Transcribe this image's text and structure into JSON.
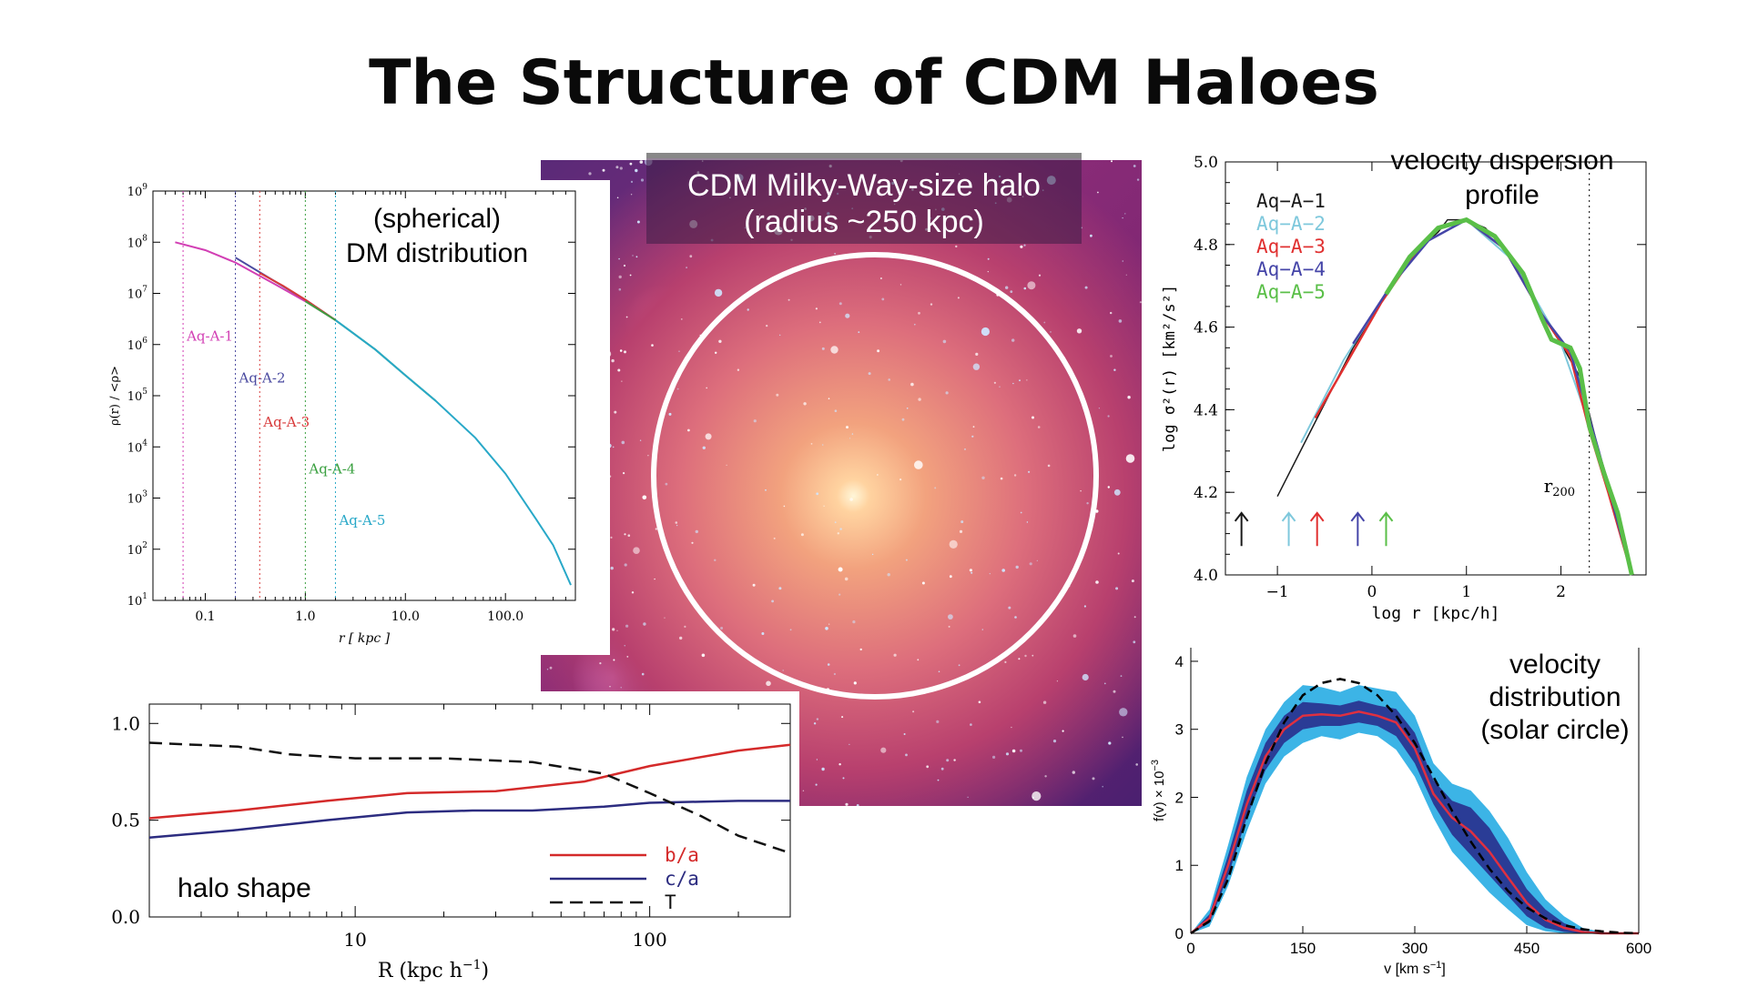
{
  "page": {
    "title": "The Structure of CDM Haloes"
  },
  "halo_image": {
    "caption_line1": "CDM Milky-Way-size halo",
    "caption_line2": "(radius ~250 kpc)"
  },
  "chart_data": [
    {
      "id": "density",
      "type": "line",
      "title_line1": "(spherical)",
      "title_line2": "DM distribution",
      "xlabel": "r [ kpc ]",
      "ylabel": "ρ(r) / <ρ>",
      "xscale": "log",
      "yscale": "log",
      "xlim": [
        0.03,
        500
      ],
      "ylim": [
        10,
        1000000000
      ],
      "xticks": [
        "0.1",
        "1.0",
        "10.0",
        "100.0"
      ],
      "xtick_values": [
        0.1,
        1,
        10,
        100
      ],
      "ytick_values": [
        10,
        100,
        1000,
        10000,
        100000,
        1000000,
        10000000,
        100000000,
        1000000000
      ],
      "yticks": [
        "1",
        "2",
        "3",
        "4",
        "5",
        "6",
        "7",
        "8",
        "9"
      ],
      "ytick_base": "10",
      "series": [
        {
          "name": "Aq-A-1",
          "color": "#d23fb4",
          "x": [
            0.05,
            0.1,
            0.2,
            0.5,
            1,
            2
          ],
          "y": [
            100000000,
            70000000,
            40000000,
            15000000,
            7000000,
            3000000
          ]
        },
        {
          "name": "Aq-A-2",
          "color": "#4a4aa0",
          "x": [
            0.2,
            0.5,
            1,
            2
          ],
          "y": [
            50000000,
            17000000,
            7500000,
            3000000
          ]
        },
        {
          "name": "Aq-A-3",
          "color": "#d83a3a",
          "x": [
            0.35,
            0.6,
            1,
            2
          ],
          "y": [
            25000000,
            14000000,
            7500000,
            3000000
          ]
        },
        {
          "name": "Aq-A-4",
          "color": "#3aa040",
          "x": [
            1,
            2,
            5,
            10,
            20
          ],
          "y": [
            7000000,
            3000000,
            800000,
            250000,
            80000
          ]
        },
        {
          "name": "Aq-A-5",
          "color": "#28a8c8",
          "x": [
            2,
            5,
            10,
            20,
            50,
            100,
            200,
            300,
            450
          ],
          "y": [
            3000000,
            800000,
            250000,
            80000,
            15000,
            3000,
            400,
            120,
            20
          ]
        }
      ],
      "convergence_radii": [
        0.06,
        0.2,
        0.35,
        1.0,
        2.0
      ],
      "label_y": [
        1200000,
        180000,
        25000,
        3000,
        300
      ]
    },
    {
      "id": "velocity-dispersion",
      "type": "line",
      "title_line1": "velocity dispersion",
      "title_line2": "profile",
      "xlabel": "log r [kpc/h]",
      "ylabel": "log σ²(r) [km²/s²]",
      "xlim": [
        -1.55,
        2.9
      ],
      "ylim": [
        4.0,
        5.0
      ],
      "xticks": [
        "−1",
        "0",
        "1",
        "2"
      ],
      "xtick_values": [
        -1,
        0,
        1,
        2
      ],
      "yticks": [
        "4.0",
        "4.2",
        "4.4",
        "4.6",
        "4.8",
        "5.0"
      ],
      "ytick_values": [
        4.0,
        4.2,
        4.4,
        4.6,
        4.8,
        5.0
      ],
      "series": [
        {
          "name": "Aq−A−1",
          "color": "#1a1a1a",
          "x": [
            -1,
            -0.6,
            -0.2,
            0.2,
            0.5,
            0.7,
            0.8,
            1.0,
            1.2,
            1.4,
            1.6,
            1.8,
            2.0,
            2.2,
            2.4,
            2.6,
            2.75
          ],
          "y": [
            4.19,
            4.37,
            4.55,
            4.7,
            4.79,
            4.83,
            4.86,
            4.86,
            4.84,
            4.79,
            4.72,
            4.63,
            4.56,
            4.48,
            4.3,
            4.15,
            4.0
          ]
        },
        {
          "name": "Aq−A−2",
          "color": "#7ec8dc",
          "x": [
            -0.75,
            -0.3,
            0.2,
            0.6,
            1.0,
            1.5,
            2.0,
            2.4,
            2.75
          ],
          "y": [
            4.32,
            4.52,
            4.7,
            4.81,
            4.86,
            4.76,
            4.56,
            4.3,
            4.0
          ]
        },
        {
          "name": "Aq−A−3",
          "color": "#e03030",
          "x": [
            -0.6,
            -0.3,
            0.1,
            0.4,
            0.7,
            1.0,
            1.4,
            1.8,
            2.1,
            2.3,
            2.5,
            2.75
          ],
          "y": [
            4.38,
            4.5,
            4.66,
            4.76,
            4.84,
            4.86,
            4.79,
            4.63,
            4.53,
            4.35,
            4.2,
            4.0
          ]
        },
        {
          "name": "Aq−A−4",
          "color": "#4545a8",
          "x": [
            -0.2,
            0.2,
            0.6,
            1.0,
            1.4,
            1.8,
            2.1,
            2.4,
            2.75
          ],
          "y": [
            4.56,
            4.7,
            4.81,
            4.86,
            4.79,
            4.63,
            4.54,
            4.3,
            4.0
          ]
        },
        {
          "name": "Aq−A−5",
          "color": "#5abf48",
          "x": [
            0.15,
            0.4,
            0.7,
            1.0,
            1.3,
            1.6,
            1.8,
            1.9,
            2.0,
            2.1,
            2.2,
            2.3,
            2.45,
            2.6,
            2.75
          ],
          "y": [
            4.68,
            4.77,
            4.84,
            4.86,
            4.82,
            4.73,
            4.62,
            4.57,
            4.56,
            4.55,
            4.5,
            4.36,
            4.25,
            4.15,
            4.0
          ]
        }
      ],
      "arrows": [
        {
          "x": -1.38,
          "color": "#1a1a1a"
        },
        {
          "x": -0.88,
          "color": "#7ec8dc"
        },
        {
          "x": -0.58,
          "color": "#e03030"
        },
        {
          "x": -0.15,
          "color": "#4545a8"
        },
        {
          "x": 0.15,
          "color": "#5abf48"
        }
      ],
      "r200_label": "r",
      "r200_sub": "200",
      "r200_x": 2.3
    },
    {
      "id": "halo-shape",
      "type": "line",
      "title": "halo shape",
      "xlabel": "R (kpc h",
      "xlabel_sup": "−1",
      "xlabel_end": ")",
      "xscale": "log",
      "xlim": [
        2,
        300
      ],
      "ylim": [
        0,
        1.1
      ],
      "xticks": [
        "10",
        "100"
      ],
      "xtick_values": [
        10,
        100
      ],
      "yticks": [
        "0.0",
        "0.5",
        "1.0"
      ],
      "ytick_values": [
        0,
        0.5,
        1.0
      ],
      "series": [
        {
          "name": "b/a",
          "color": "#d42a2a",
          "dash": "",
          "x": [
            2,
            4,
            8,
            15,
            30,
            60,
            100,
            200,
            300
          ],
          "y": [
            0.51,
            0.55,
            0.6,
            0.64,
            0.65,
            0.7,
            0.78,
            0.86,
            0.89
          ]
        },
        {
          "name": "c/a",
          "color": "#2c2c80",
          "dash": "",
          "x": [
            2,
            4,
            8,
            15,
            25,
            40,
            70,
            100,
            200,
            300
          ],
          "y": [
            0.41,
            0.45,
            0.5,
            0.54,
            0.55,
            0.55,
            0.57,
            0.59,
            0.6,
            0.6
          ]
        },
        {
          "name": "T",
          "color": "#111111",
          "dash": "14,8",
          "x": [
            2,
            4,
            6,
            10,
            20,
            40,
            70,
            100,
            150,
            200,
            300
          ],
          "y": [
            0.9,
            0.88,
            0.84,
            0.82,
            0.82,
            0.8,
            0.74,
            0.64,
            0.52,
            0.42,
            0.33
          ]
        }
      ]
    },
    {
      "id": "velocity-distribution",
      "type": "area",
      "title_line1": "velocity",
      "title_line2": "distribution",
      "title_line3": "(solar circle)",
      "xlabel": "v [km s",
      "xlabel_sup": "−1",
      "xlabel_end": "]",
      "ylabel": "f(v) × 10",
      "ylabel_sup": "−3",
      "xlim": [
        0,
        600
      ],
      "ylim": [
        0,
        4.2
      ],
      "xticks": [
        "0",
        "150",
        "300",
        "450",
        "600"
      ],
      "xtick_values": [
        0,
        150,
        300,
        450,
        600
      ],
      "yticks": [
        "0",
        "1",
        "2",
        "3",
        "4"
      ],
      "ytick_values": [
        0,
        1,
        2,
        3,
        4
      ],
      "x": [
        0,
        25,
        50,
        75,
        100,
        125,
        150,
        175,
        200,
        225,
        250,
        275,
        300,
        325,
        350,
        375,
        400,
        425,
        450,
        475,
        500,
        525,
        550,
        575,
        600
      ],
      "outer_upper": [
        0.0,
        0.35,
        1.3,
        2.3,
        3.0,
        3.4,
        3.65,
        3.62,
        3.55,
        3.65,
        3.6,
        3.55,
        3.2,
        2.5,
        2.2,
        2.1,
        1.8,
        1.4,
        0.9,
        0.5,
        0.25,
        0.08,
        0.02,
        0.0,
        0.0
      ],
      "outer_lower": [
        0.0,
        0.1,
        0.7,
        1.5,
        2.2,
        2.6,
        2.8,
        2.9,
        2.85,
        2.95,
        2.9,
        2.7,
        2.3,
        1.7,
        1.2,
        0.9,
        0.6,
        0.35,
        0.12,
        0.03,
        0.0,
        0.0,
        0.0,
        0.0,
        0.0
      ],
      "inner_upper": [
        0.0,
        0.28,
        1.15,
        2.1,
        2.8,
        3.2,
        3.4,
        3.38,
        3.35,
        3.42,
        3.35,
        3.3,
        2.95,
        2.25,
        1.95,
        1.85,
        1.55,
        1.1,
        0.65,
        0.35,
        0.15,
        0.04,
        0.0,
        0.0,
        0.0
      ],
      "inner_lower": [
        0.0,
        0.15,
        0.85,
        1.7,
        2.4,
        2.8,
        3.0,
        3.05,
        3.05,
        3.1,
        3.05,
        2.9,
        2.5,
        1.9,
        1.45,
        1.15,
        0.85,
        0.55,
        0.25,
        0.08,
        0.02,
        0.0,
        0.0,
        0.0,
        0.0
      ],
      "median": [
        0.0,
        0.22,
        1.0,
        1.9,
        2.6,
        3.0,
        3.2,
        3.22,
        3.2,
        3.26,
        3.2,
        3.1,
        2.72,
        2.05,
        1.7,
        1.5,
        1.2,
        0.82,
        0.45,
        0.2,
        0.08,
        0.02,
        0.0,
        0.0,
        0.0
      ],
      "model": [
        0.0,
        0.18,
        0.8,
        1.7,
        2.5,
        3.1,
        3.5,
        3.68,
        3.74,
        3.68,
        3.5,
        3.2,
        2.8,
        2.3,
        1.8,
        1.35,
        0.95,
        0.62,
        0.38,
        0.22,
        0.12,
        0.06,
        0.03,
        0.01,
        0.0
      ],
      "colors": {
        "outer": "#3cb4e6",
        "inner": "#2a3c96",
        "median": "#e03040",
        "model": "#000000"
      }
    }
  ]
}
